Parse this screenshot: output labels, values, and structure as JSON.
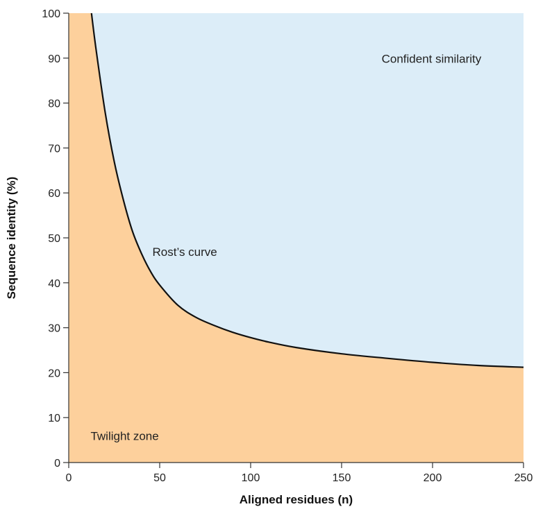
{
  "chart_data": {
    "type": "area",
    "title": "",
    "xlabel": "Aligned residues (n)",
    "ylabel": "Sequence identity (%)",
    "xlim": [
      0,
      250
    ],
    "ylim": [
      0,
      100
    ],
    "x_ticks": [
      "0",
      "50",
      "100",
      "150",
      "200",
      "250"
    ],
    "y_ticks": [
      "0",
      "10",
      "20",
      "30",
      "40",
      "50",
      "60",
      "70",
      "80",
      "90",
      "100"
    ],
    "grid": false,
    "series": [
      {
        "name": "Rost's curve",
        "x": [
          12.5,
          15,
          20,
          25,
          30,
          35,
          40,
          45,
          50,
          60,
          70,
          80,
          90,
          100,
          110,
          125,
          150,
          175,
          200,
          225,
          250
        ],
        "y": [
          100,
          92,
          78,
          67,
          58.5,
          51.5,
          46.5,
          42.5,
          39.5,
          35,
          32.3,
          30.5,
          29,
          27.8,
          26.8,
          25.6,
          24.2,
          23.2,
          22.3,
          21.6,
          21.2
        ]
      }
    ],
    "regions": {
      "above": {
        "label": "Confident similarity",
        "color": "#dcedf8"
      },
      "below": {
        "label": "Twilight zone",
        "color": "#fdd09c"
      }
    },
    "annotations": [
      {
        "text": "Rost’s curve",
        "x": 46,
        "y": 46
      },
      {
        "text": "Confident similarity",
        "x": 172,
        "y": 89
      },
      {
        "text": "Twilight zone",
        "x": 12,
        "y": 5
      }
    ],
    "curve_color": "#111111"
  }
}
